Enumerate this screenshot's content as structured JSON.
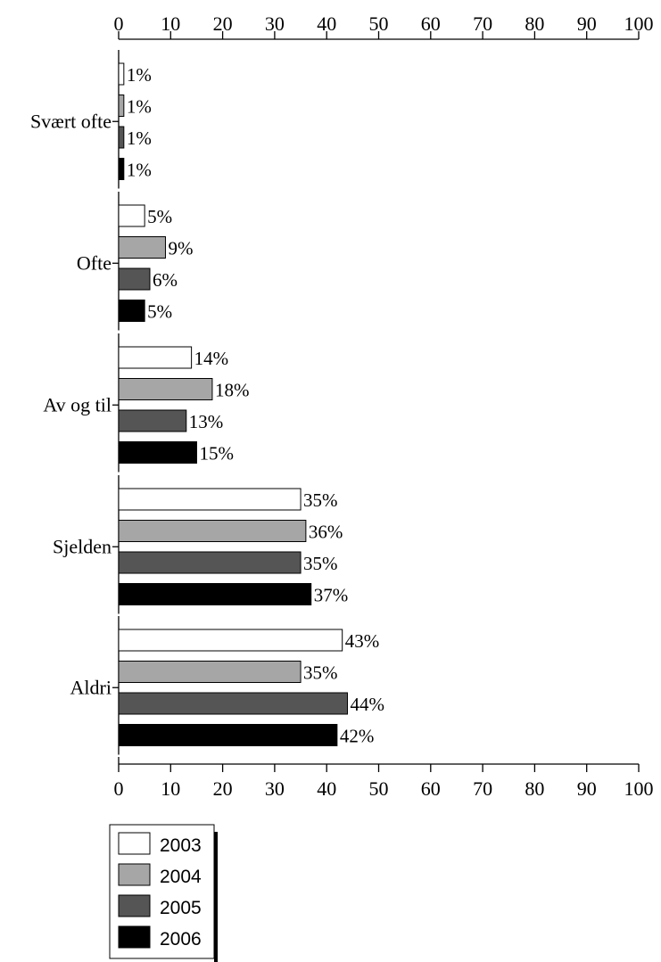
{
  "chart_data": {
    "type": "bar",
    "orientation": "horizontal",
    "categories": [
      "Svært ofte",
      "Ofte",
      "Av og til",
      "Sjelden",
      "Aldri"
    ],
    "series": [
      {
        "name": "2003",
        "values": [
          1,
          5,
          14,
          35,
          43
        ],
        "labels": [
          "1%",
          "5%",
          "14%",
          "35%",
          "43%"
        ],
        "color": "#ffffff"
      },
      {
        "name": "2004",
        "values": [
          1,
          9,
          18,
          36,
          35
        ],
        "labels": [
          "1%",
          "9%",
          "18%",
          "36%",
          "35%"
        ],
        "color": "#a6a6a6"
      },
      {
        "name": "2005",
        "values": [
          1,
          6,
          13,
          35,
          44
        ],
        "labels": [
          "1%",
          "6%",
          "13%",
          "35%",
          "44%"
        ],
        "color": "#555555"
      },
      {
        "name": "2006",
        "values": [
          1,
          5,
          15,
          37,
          42
        ],
        "labels": [
          "1%",
          "5%",
          "15%",
          "37%",
          "42%"
        ],
        "color": "#000000"
      }
    ],
    "xlim": [
      0,
      100
    ],
    "xticks": [
      0,
      10,
      20,
      30,
      40,
      50,
      60,
      70,
      80,
      90,
      100
    ],
    "xtick_labels": [
      "0",
      "10",
      "20",
      "30",
      "40",
      "50",
      "60",
      "70",
      "80",
      "90",
      "100"
    ],
    "axis_position": "top and bottom",
    "grid": false,
    "legend": "bottom-left",
    "title": "",
    "xlabel": "",
    "ylabel": ""
  }
}
